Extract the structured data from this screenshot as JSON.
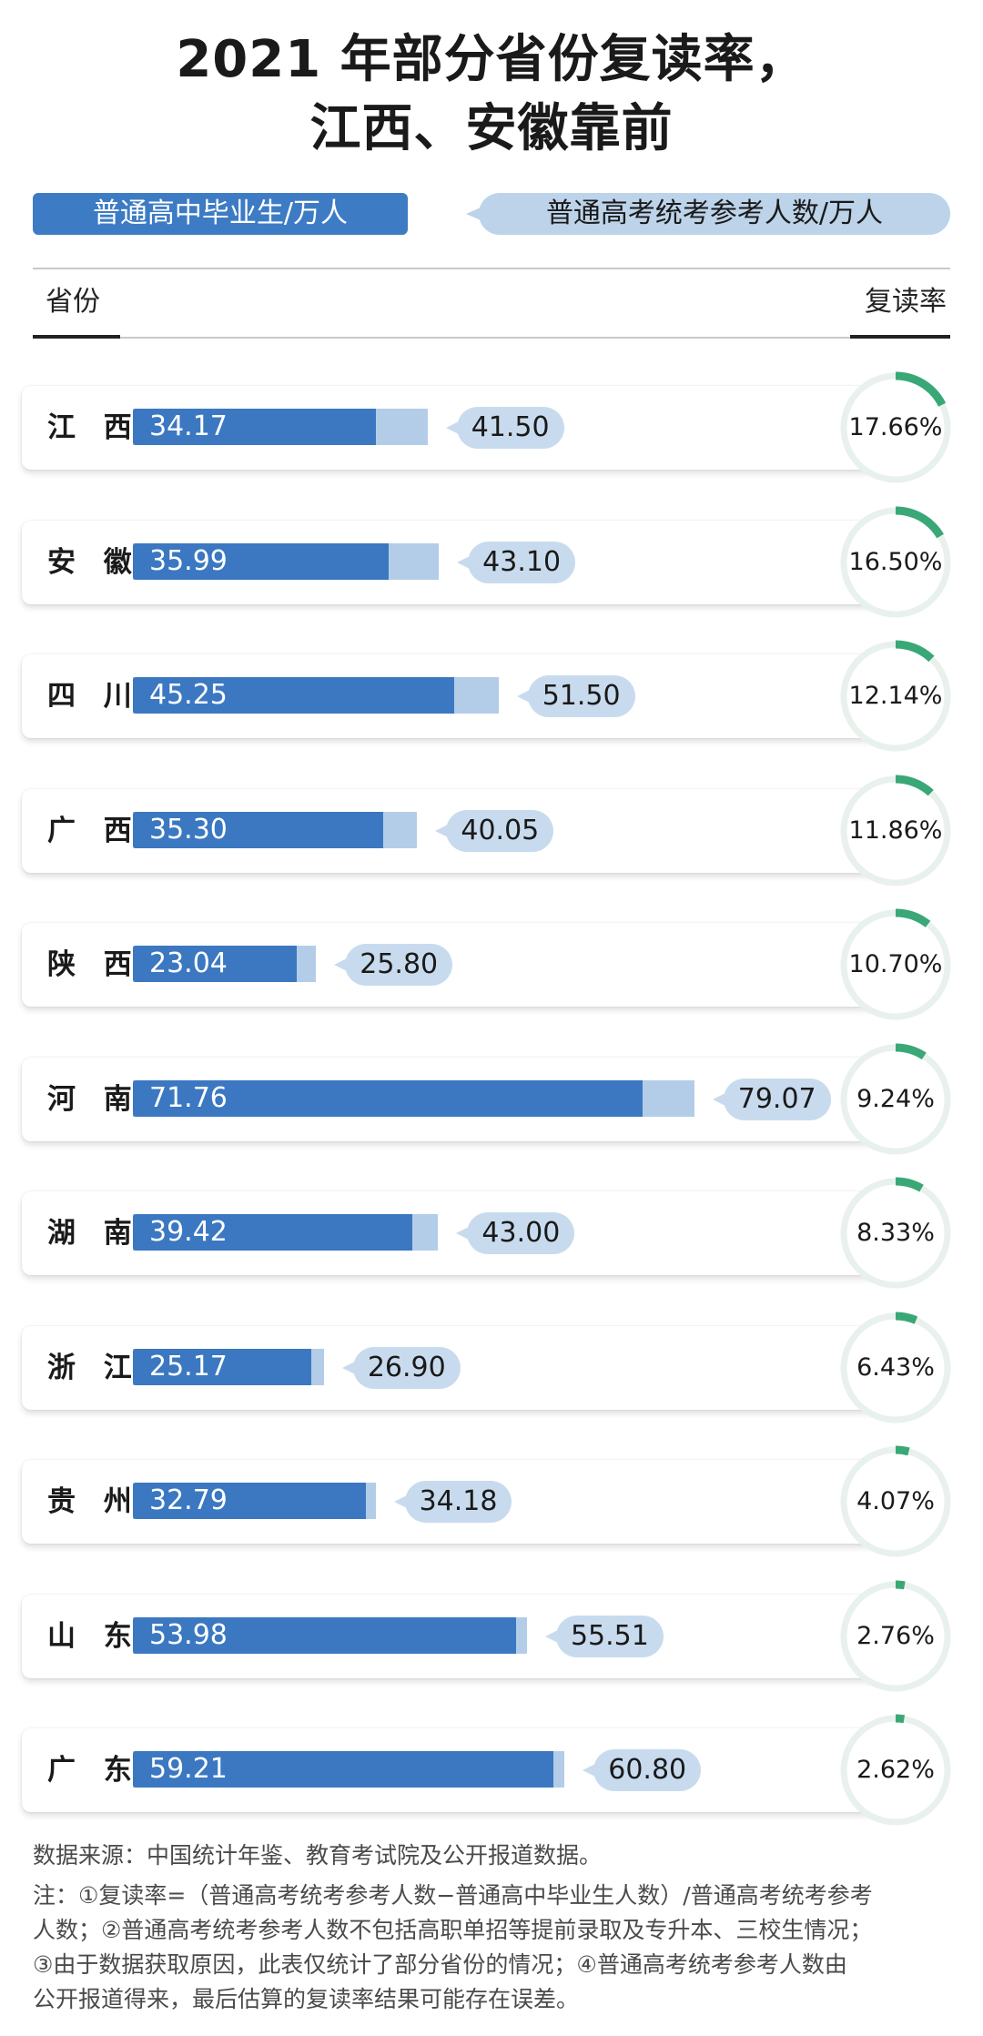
{
  "title_lines": [
    "2021 年部分省份复读率，",
    "江西、安徽靠前"
  ],
  "legend": {
    "graduates": "普通高中毕业生/万人",
    "examinees": "普通高考统考参考人数/万人"
  },
  "header": {
    "province": "省份",
    "rate": "复读率"
  },
  "colors": {
    "graduates_bar": "#3b78c1",
    "examinees_bar": "#b3cde8",
    "ring_track": "#e9f1ec",
    "ring_fill": "#3aa876"
  },
  "chart_data": {
    "type": "bar",
    "categories": [
      "江 西",
      "安 徽",
      "四 川",
      "广 西",
      "陕 西",
      "河 南",
      "湖 南",
      "浙 江",
      "贵 州",
      "山 东",
      "广 东"
    ],
    "series": [
      {
        "name": "普通高中毕业生/万人",
        "values": [
          34.17,
          35.99,
          45.25,
          35.3,
          23.04,
          71.76,
          39.42,
          25.17,
          32.79,
          53.98,
          59.21
        ]
      },
      {
        "name": "普通高考统考参考人数/万人",
        "values": [
          41.5,
          43.1,
          51.5,
          40.05,
          25.8,
          79.07,
          43.0,
          26.9,
          34.18,
          55.51,
          60.8
        ]
      }
    ],
    "rates": [
      "17.66%",
      "16.50%",
      "12.14%",
      "11.86%",
      "10.70%",
      "9.24%",
      "8.33%",
      "6.43%",
      "4.07%",
      "2.76%",
      "2.62%"
    ],
    "rate_values": [
      17.66,
      16.5,
      12.14,
      11.86,
      10.7,
      9.24,
      8.33,
      6.43,
      4.07,
      2.76,
      2.62
    ],
    "grad_labels": [
      "34.17",
      "35.99",
      "45.25",
      "35.30",
      "23.04",
      "71.76",
      "39.42",
      "25.17",
      "32.79",
      "53.98",
      "59.21"
    ],
    "exam_labels": [
      "41.50",
      "43.10",
      "51.50",
      "40.05",
      "25.80",
      "79.07",
      "43.00",
      "26.90",
      "34.18",
      "55.51",
      "60.80"
    ]
  },
  "notes": {
    "source": "数据来源：中国统计年鉴、教育考试院及公开报道数据。",
    "lines": [
      "注：①复读率=（普通高考统考参考人数−普通高中毕业生人数）/普通高考统考参考",
      "人数；②普通高考统考参考人数不包括高职单招等提前录取及专升本、三校生情况；",
      "③由于数据获取原因，此表仅统计了部分省份的情况；④普通高考统考参考人数由",
      "公开报道得来，最后估算的复读率结果可能存在误差。"
    ]
  }
}
